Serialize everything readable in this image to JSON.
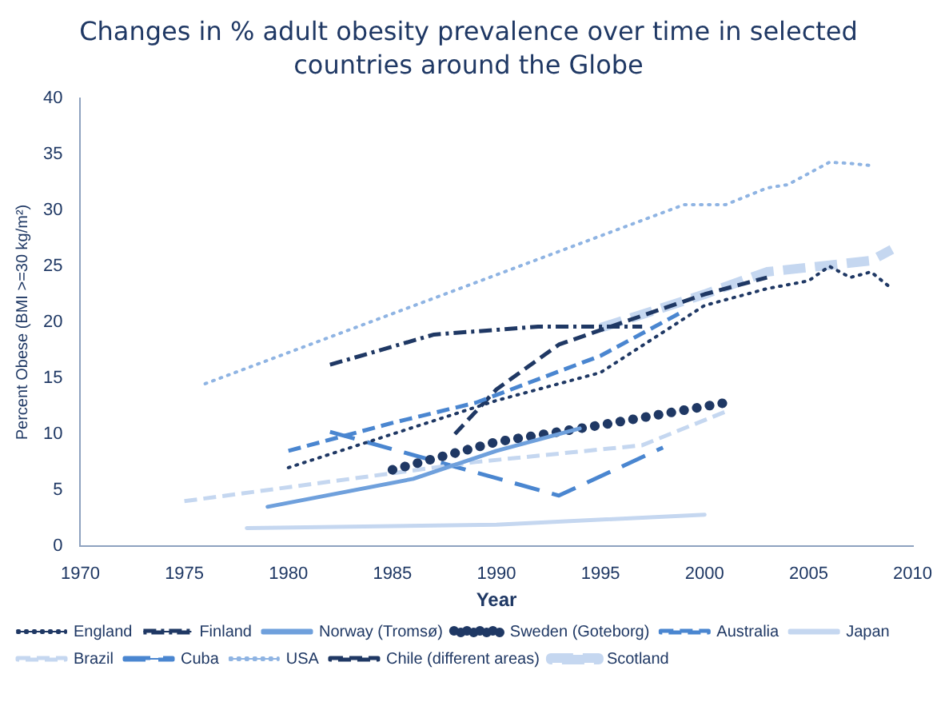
{
  "chart_data": {
    "type": "line",
    "title": "Changes in % adult obesity prevalence over time in selected countries around the Globe",
    "xlabel": "Year",
    "ylabel": "Percent Obese (BMI >=30 kg/m²)",
    "xlim": [
      1970,
      2010
    ],
    "xticks": [
      1970,
      1975,
      1980,
      1985,
      1990,
      1995,
      2000,
      2005,
      2010
    ],
    "ylim": [
      0,
      40
    ],
    "yticks": [
      0,
      5,
      10,
      15,
      20,
      25,
      30,
      35,
      40
    ],
    "grid": false,
    "legend": "bottom",
    "marker": "none",
    "series": [
      {
        "name": "England",
        "color": "#1f3864",
        "line_style": "dotted",
        "x": [
          1980,
          1990,
          1995,
          2000,
          2003,
          2005,
          2006,
          2007,
          2008,
          2009
        ],
        "values": [
          7,
          13,
          15.5,
          21.5,
          23,
          23.7,
          25,
          24,
          24.5,
          23
        ]
      },
      {
        "name": "Finland",
        "color": "#1f3864",
        "line_style": "dashdot",
        "x": [
          1982,
          1987,
          1992,
          1997
        ],
        "values": [
          16.2,
          18.9,
          19.6,
          19.6
        ]
      },
      {
        "name": "Norway (Tromsø)",
        "color": "#6fa0dc",
        "line_style": "solid",
        "x": [
          1979,
          1986,
          1990,
          1994
        ],
        "values": [
          3.5,
          6,
          8.5,
          10.5
        ]
      },
      {
        "name": "Sweden (Goteborg)",
        "color": "#1f3864",
        "line_style": "bigdots",
        "x": [
          1985,
          1990,
          1995,
          2001
        ],
        "values": [
          6.8,
          9.3,
          10.8,
          12.8
        ]
      },
      {
        "name": "Australia",
        "color": "#4a86d0",
        "line_style": "dashed",
        "x": [
          1980,
          1985,
          1989,
          1995,
          1999
        ],
        "values": [
          8.5,
          11,
          12.8,
          17,
          21
        ]
      },
      {
        "name": "Japan",
        "color": "#c5d7f0",
        "line_style": "solid",
        "x": [
          1978,
          1990,
          2000
        ],
        "values": [
          1.6,
          1.9,
          2.8
        ]
      },
      {
        "name": "Brazil",
        "color": "#c5d7f0",
        "line_style": "dashed",
        "x": [
          1975,
          1989,
          1997,
          2001
        ],
        "values": [
          4,
          7.5,
          9,
          12
        ]
      },
      {
        "name": "Cuba",
        "color": "#4a86d0",
        "line_style": "longdash",
        "x": [
          1982,
          1993,
          1998
        ],
        "values": [
          10.2,
          4.5,
          8.8
        ]
      },
      {
        "name": "USA",
        "color": "#8fb4e3",
        "line_style": "dotted",
        "x": [
          1976,
          1999,
          2001,
          2003,
          2004,
          2006,
          2007,
          2008
        ],
        "values": [
          14.5,
          30.5,
          30.5,
          32,
          32.3,
          34.3,
          34.2,
          34
        ]
      },
      {
        "name": "Chile (different areas)",
        "color": "#1f3864",
        "line_style": "dashed",
        "x": [
          1988,
          1990,
          1993,
          1995,
          2000,
          2003
        ],
        "values": [
          10,
          14,
          18,
          19.3,
          22.5,
          24
        ]
      },
      {
        "name": "Scotland",
        "color": "#c5d7f0",
        "line_style": "thickdash",
        "x": [
          1995,
          2000,
          2003,
          2008,
          2009
        ],
        "values": [
          19.5,
          22.5,
          24.5,
          25.5,
          26.5
        ]
      }
    ]
  }
}
